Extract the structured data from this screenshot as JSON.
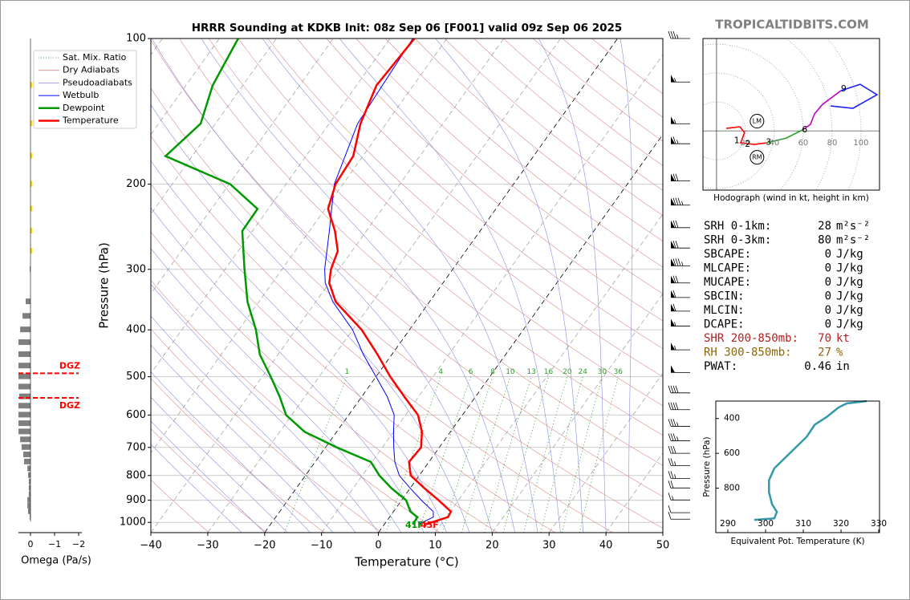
{
  "chart_data": [
    {
      "type": "skewt",
      "title": "HRRR Sounding at KDKB Init: 08z Sep 06 [F001] valid 09z Sep 06 2025",
      "xlabel": "Temperature (°C)",
      "ylabel": "Pressure (hPa)",
      "xlim": [
        -40,
        50
      ],
      "ylim": [
        1050,
        100
      ],
      "log_y": true,
      "grid": true,
      "xticks": [
        {
          "value": -40,
          "label": "−40"
        },
        {
          "value": -30,
          "label": "−30"
        },
        {
          "value": -20,
          "label": "−20"
        },
        {
          "value": -10,
          "label": "−10"
        },
        0,
        10,
        20,
        30,
        40,
        50
      ],
      "yticks": [
        100,
        200,
        300,
        400,
        500,
        600,
        700,
        800,
        900,
        1000
      ],
      "legend": "upper left",
      "reference_lines": [
        {
          "name": "Sat. Mix. Ratio",
          "color": "#2ca02c",
          "labels": [
            1,
            4,
            6,
            8,
            10,
            13,
            16,
            20,
            24,
            30,
            36
          ]
        },
        {
          "name": "Dry Adiabats",
          "color": "#d98c8c"
        },
        {
          "name": "Pseudoadiabats",
          "color": "#8c8ce0"
        }
      ],
      "series": [
        {
          "name": "Wetbulb",
          "color": "#0000ff",
          "width": 1,
          "pressure": [
            1010,
            975,
            950,
            900,
            850,
            800,
            750,
            700,
            650,
            600,
            550,
            500,
            450,
            400,
            350,
            320,
            300,
            250,
            200,
            150,
            100
          ],
          "values": [
            6,
            7.7,
            7,
            3.5,
            0,
            -3.5,
            -6,
            -8,
            -10,
            -12,
            -15.5,
            -20,
            -25,
            -30,
            -37,
            -40.7,
            -42.5,
            -46.5,
            -51.5,
            -55,
            -56
          ]
        },
        {
          "name": "Dewpoint",
          "color": "#009900",
          "width": 2.5,
          "pressure": [
            1010,
            975,
            950,
            900,
            850,
            800,
            750,
            700,
            650,
            600,
            550,
            500,
            450,
            400,
            350,
            300,
            250,
            225,
            200,
            175,
            150,
            125,
            100
          ],
          "values": [
            5,
            4.9,
            3,
            0.8,
            -3.3,
            -7,
            -10.2,
            -18,
            -25.6,
            -31,
            -34.4,
            -38.5,
            -43.2,
            -47,
            -52,
            -56.6,
            -61.8,
            -61.9,
            -69.8,
            -84.7,
            -82.6,
            -85.3,
            -86.7
          ]
        },
        {
          "name": "Temperature",
          "color": "#ff0000",
          "width": 2.5,
          "pressure": [
            1010,
            975,
            950,
            900,
            850,
            800,
            750,
            700,
            650,
            600,
            550,
            500,
            450,
            400,
            350,
            320,
            300,
            275,
            250,
            225,
            200,
            175,
            150,
            125,
            100
          ],
          "values": [
            7.2,
            10.3,
            10.1,
            6.5,
            2.5,
            -1.5,
            -3.5,
            -3.2,
            -5,
            -7.8,
            -12.5,
            -17.5,
            -22.5,
            -28.4,
            -36.5,
            -40,
            -41.4,
            -42.5,
            -45.5,
            -49.5,
            -51.3,
            -51.7,
            -54.5,
            -56.5,
            -55.7
          ]
        }
      ],
      "surface_labels": [
        {
          "text": "41F",
          "color": "#009900"
        },
        {
          "text": "45F",
          "color": "#ff0000"
        }
      ],
      "wind_barbs": {
        "pressure": [
          100,
          123,
          150,
          165,
          197,
          221,
          246,
          271,
          295,
          320,
          343,
          366,
          393,
          440,
          490,
          540,
          585,
          633,
          678,
          720,
          763,
          811,
          849,
          899,
          955,
          985
        ],
        "speed": [
          35,
          55,
          55,
          65,
          70,
          85,
          70,
          70,
          85,
          70,
          60,
          60,
          55,
          55,
          50,
          40,
          40,
          35,
          35,
          30,
          25,
          25,
          20,
          15,
          10,
          10
        ]
      }
    },
    {
      "type": "omega",
      "xlabel": "Omega (Pa/s)",
      "xlim": [
        0.5,
        -2
      ],
      "ylim": [
        1050,
        100
      ],
      "xticks": [
        0,
        {
          "value": -1,
          "label": "−1"
        },
        {
          "value": -2,
          "label": "−2"
        }
      ],
      "pressure": [
        125,
        150,
        175,
        200,
        225,
        250,
        275,
        300,
        350,
        375,
        400,
        425,
        450,
        475,
        500,
        525,
        550,
        575,
        600,
        625,
        650,
        675,
        700,
        725,
        750,
        775,
        800,
        825,
        850,
        875,
        900,
        925,
        950,
        975
      ],
      "values": [
        -0.08,
        -0.08,
        -0.08,
        -0.08,
        -0.08,
        -0.08,
        -0.08,
        0.03,
        0.2,
        0.33,
        0.43,
        0.5,
        0.5,
        0.5,
        0.5,
        0.5,
        0.47,
        0.5,
        0.5,
        0.5,
        0.5,
        0.43,
        0.37,
        0.3,
        0.27,
        0.13,
        0.1,
        0.07,
        0.07,
        0.07,
        0.13,
        0.13,
        0.1,
        0.03
      ],
      "colors": [
        "#ffd700",
        "#ffd700",
        "#ffd700",
        "#ffd700",
        "#ffd700",
        "#ffd700",
        "#ffd700",
        "#7f7f7f",
        "#7f7f7f",
        "#7f7f7f",
        "#7f7f7f",
        "#7f7f7f",
        "#7f7f7f",
        "#7f7f7f",
        "#7f7f7f",
        "#7f7f7f",
        "#7f7f7f",
        "#7f7f7f",
        "#7f7f7f",
        "#7f7f7f",
        "#7f7f7f",
        "#7f7f7f",
        "#7f7f7f",
        "#7f7f7f",
        "#7f7f7f",
        "#7f7f7f",
        "#7f7f7f",
        "#7f7f7f",
        "#7f7f7f",
        "#7f7f7f",
        "#7f7f7f",
        "#7f7f7f",
        "#7f7f7f",
        "#7f7f7f"
      ],
      "dgz_lines": [
        {
          "pressure": 492,
          "label": "DGZ"
        },
        {
          "pressure": 553,
          "label": "DGZ"
        }
      ],
      "dgz_color": "#ff0000"
    },
    {
      "type": "hodograph",
      "caption": "Hodograph (wind in kt, height in km)",
      "xlim": [
        -9.4,
        112.8
      ],
      "ylim": [
        -41,
        63.9
      ],
      "xticks": [
        20,
        40,
        60,
        80,
        100
      ],
      "series": [
        {
          "color": "#ff0000",
          "u": [
            6.7,
            16.1,
            19.4,
            16.7,
            26.1,
            34.4
          ],
          "v": [
            1.7,
            2.8,
            -1.1,
            -8.3,
            -9.4,
            -8.3
          ]
        },
        {
          "color": "#2ca02c",
          "u": [
            34.4,
            48.3,
            59.4
          ],
          "v": [
            -8.3,
            -5,
            0.6
          ]
        },
        {
          "color": "#c000c0",
          "u": [
            59.4,
            65,
            67.8,
            73.3,
            86.1
          ],
          "v": [
            0.6,
            4.4,
            11.7,
            18.3,
            27.8
          ]
        },
        {
          "color": "#1f1fff",
          "u": [
            86.1,
            99.4,
            111.1,
            94.4,
            78.9
          ],
          "v": [
            27.8,
            32.2,
            25,
            15.6,
            17.2
          ]
        }
      ],
      "heights": [
        1,
        2,
        3,
        6,
        9
      ],
      "height_u": [
        14,
        21.5,
        36,
        61,
        88
      ],
      "height_v": [
        -7,
        -9.5,
        -8,
        0.6,
        29
      ],
      "storm_motion": [
        {
          "label": "LM",
          "u": 28,
          "v": 6.7
        },
        {
          "label": "RM",
          "u": 28,
          "v": -18.3
        }
      ]
    },
    {
      "type": "profile",
      "xlabel": "Equivalent Pot. Temperature (K)",
      "ylabel": "Pressure (hPa)",
      "xlim": [
        286.8,
        330.2
      ],
      "ylim": [
        1055,
        300
      ],
      "xticks": [
        290,
        300,
        310,
        320,
        330
      ],
      "yticks": [
        400,
        600,
        800
      ],
      "color": "#3399aa",
      "pressure": [
        982,
        973,
        936,
        891,
        823,
        755,
        686,
        595,
        505,
        436,
        391,
        355,
        336,
        314,
        300
      ],
      "values": [
        297,
        302.3,
        303,
        301.7,
        300.9,
        300.9,
        302.3,
        306.6,
        310.9,
        313,
        316.2,
        318.3,
        319.4,
        321.5,
        326.8
      ]
    }
  ],
  "watermark": "TROPICALTIDBITS.COM",
  "indices": [
    {
      "label": "SRH 0-1km:",
      "value": 28,
      "unit": "m²s⁻²",
      "color": "#000000"
    },
    {
      "label": "SRH 0-3km:",
      "value": 80,
      "unit": "m²s⁻²",
      "color": "#000000"
    },
    {
      "label": "SBCAPE:",
      "value": 0,
      "unit": "J/kg",
      "color": "#000000"
    },
    {
      "label": "MLCAPE:",
      "value": 0,
      "unit": "J/kg",
      "color": "#000000"
    },
    {
      "label": "MUCAPE:",
      "value": 0,
      "unit": "J/kg",
      "color": "#000000"
    },
    {
      "label": "SBCIN:",
      "value": 0,
      "unit": "J/kg",
      "color": "#000000"
    },
    {
      "label": "MLCIN:",
      "value": 0,
      "unit": "J/kg",
      "color": "#000000"
    },
    {
      "label": "DCAPE:",
      "value": 0,
      "unit": "J/kg",
      "color": "#000000"
    },
    {
      "label": "SHR 200-850mb:",
      "value": 70,
      "unit": "kt",
      "color": "#b22222"
    },
    {
      "label": "RH 300-850mb:",
      "value": 27,
      "unit": "%",
      "color": "#8b6508"
    },
    {
      "label": "PWAT:",
      "value": 0.46,
      "unit": "in",
      "color": "#000000"
    }
  ]
}
